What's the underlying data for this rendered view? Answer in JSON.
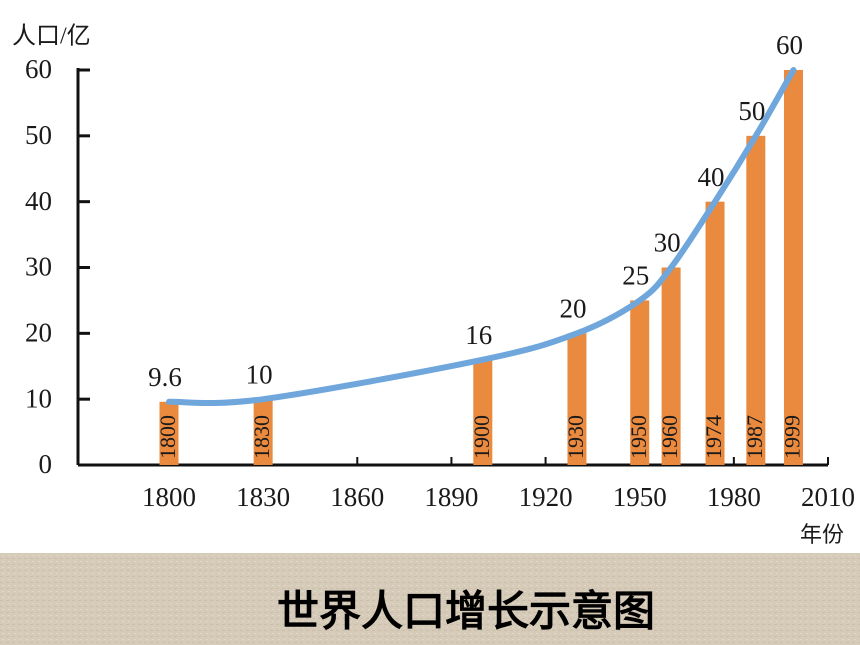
{
  "chart_data": {
    "type": "bar",
    "title": "世界人口增长示意图",
    "y_label": "人口/亿",
    "x_label": "年份",
    "x": [
      1800,
      1830,
      1900,
      1930,
      1950,
      1960,
      1974,
      1987,
      1999
    ],
    "values": [
      9.6,
      10,
      16,
      20,
      25,
      30,
      40,
      50,
      60
    ],
    "color": "#ea8a3f",
    "trend_line": true,
    "trend_color": "#6fa6dc",
    "xlim": [
      1771,
      2010
    ],
    "xticks": [
      1800,
      1830,
      1860,
      1890,
      1920,
      1950,
      1980,
      2010
    ],
    "ylim": [
      0,
      60
    ],
    "yticks": [
      0,
      10,
      20,
      30,
      40,
      50,
      60
    ]
  }
}
